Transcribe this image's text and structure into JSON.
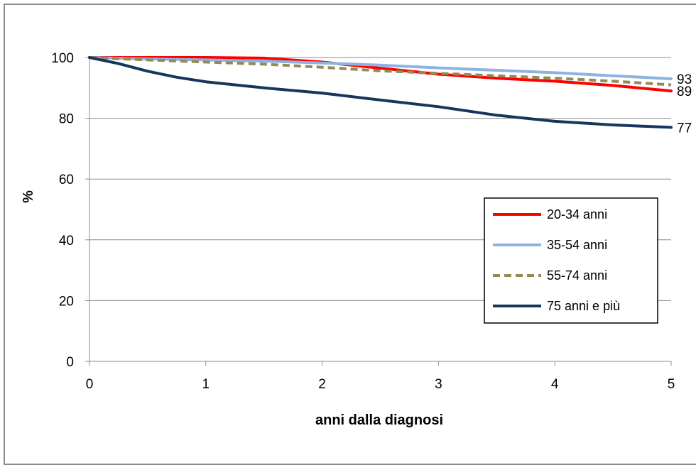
{
  "chart_data": {
    "type": "line",
    "title": "",
    "xlabel": "anni dalla diagnosi",
    "ylabel": "%",
    "xlim": [
      0,
      5
    ],
    "ylim": [
      0,
      100
    ],
    "x_ticks": [
      0,
      1,
      2,
      3,
      4,
      5
    ],
    "y_ticks": [
      0,
      20,
      40,
      60,
      80,
      100
    ],
    "grid": "horizontal",
    "legend_position": "right",
    "end_labels": [
      {
        "series": "35-54 anni",
        "text": "93",
        "value": 93
      },
      {
        "series": "20-34 anni",
        "text": "89",
        "value": 89
      },
      {
        "series": "75 anni e più",
        "text": "77",
        "value": 77
      }
    ],
    "series": [
      {
        "name": "20-34 anni",
        "color": "#ff0000",
        "dash": "solid",
        "x": [
          0,
          0.5,
          1,
          1.5,
          2,
          2.5,
          3,
          3.5,
          4,
          4.5,
          5
        ],
        "values": [
          100,
          100,
          100,
          99.8,
          98.5,
          96.5,
          94.5,
          93.2,
          92.2,
          90.8,
          89
        ]
      },
      {
        "name": "35-54 anni",
        "color": "#8db3e2",
        "dash": "solid",
        "x": [
          0,
          0.5,
          1,
          1.5,
          2,
          2.5,
          3,
          3.5,
          4,
          4.5,
          5
        ],
        "values": [
          100,
          99.5,
          99.2,
          98.8,
          98.2,
          97.5,
          96.6,
          95.8,
          95,
          94,
          93
        ]
      },
      {
        "name": "55-74 anni",
        "color": "#948a54",
        "dash": "dashed",
        "x": [
          0,
          0.5,
          1,
          1.5,
          2,
          2.5,
          3,
          3.5,
          4,
          4.5,
          5
        ],
        "values": [
          100,
          99.2,
          98.5,
          97.8,
          96.8,
          95.6,
          94.8,
          94,
          93.2,
          92.2,
          91
        ]
      },
      {
        "name": "75 anni e più",
        "color": "#17365d",
        "dash": "solid",
        "x": [
          0,
          0.25,
          0.5,
          0.75,
          1,
          1.5,
          2,
          2.5,
          3,
          3.5,
          4,
          4.5,
          5
        ],
        "values": [
          100,
          98,
          95.5,
          93.5,
          92,
          90,
          88.3,
          86,
          83.8,
          81,
          79,
          77.8,
          77
        ]
      }
    ]
  }
}
